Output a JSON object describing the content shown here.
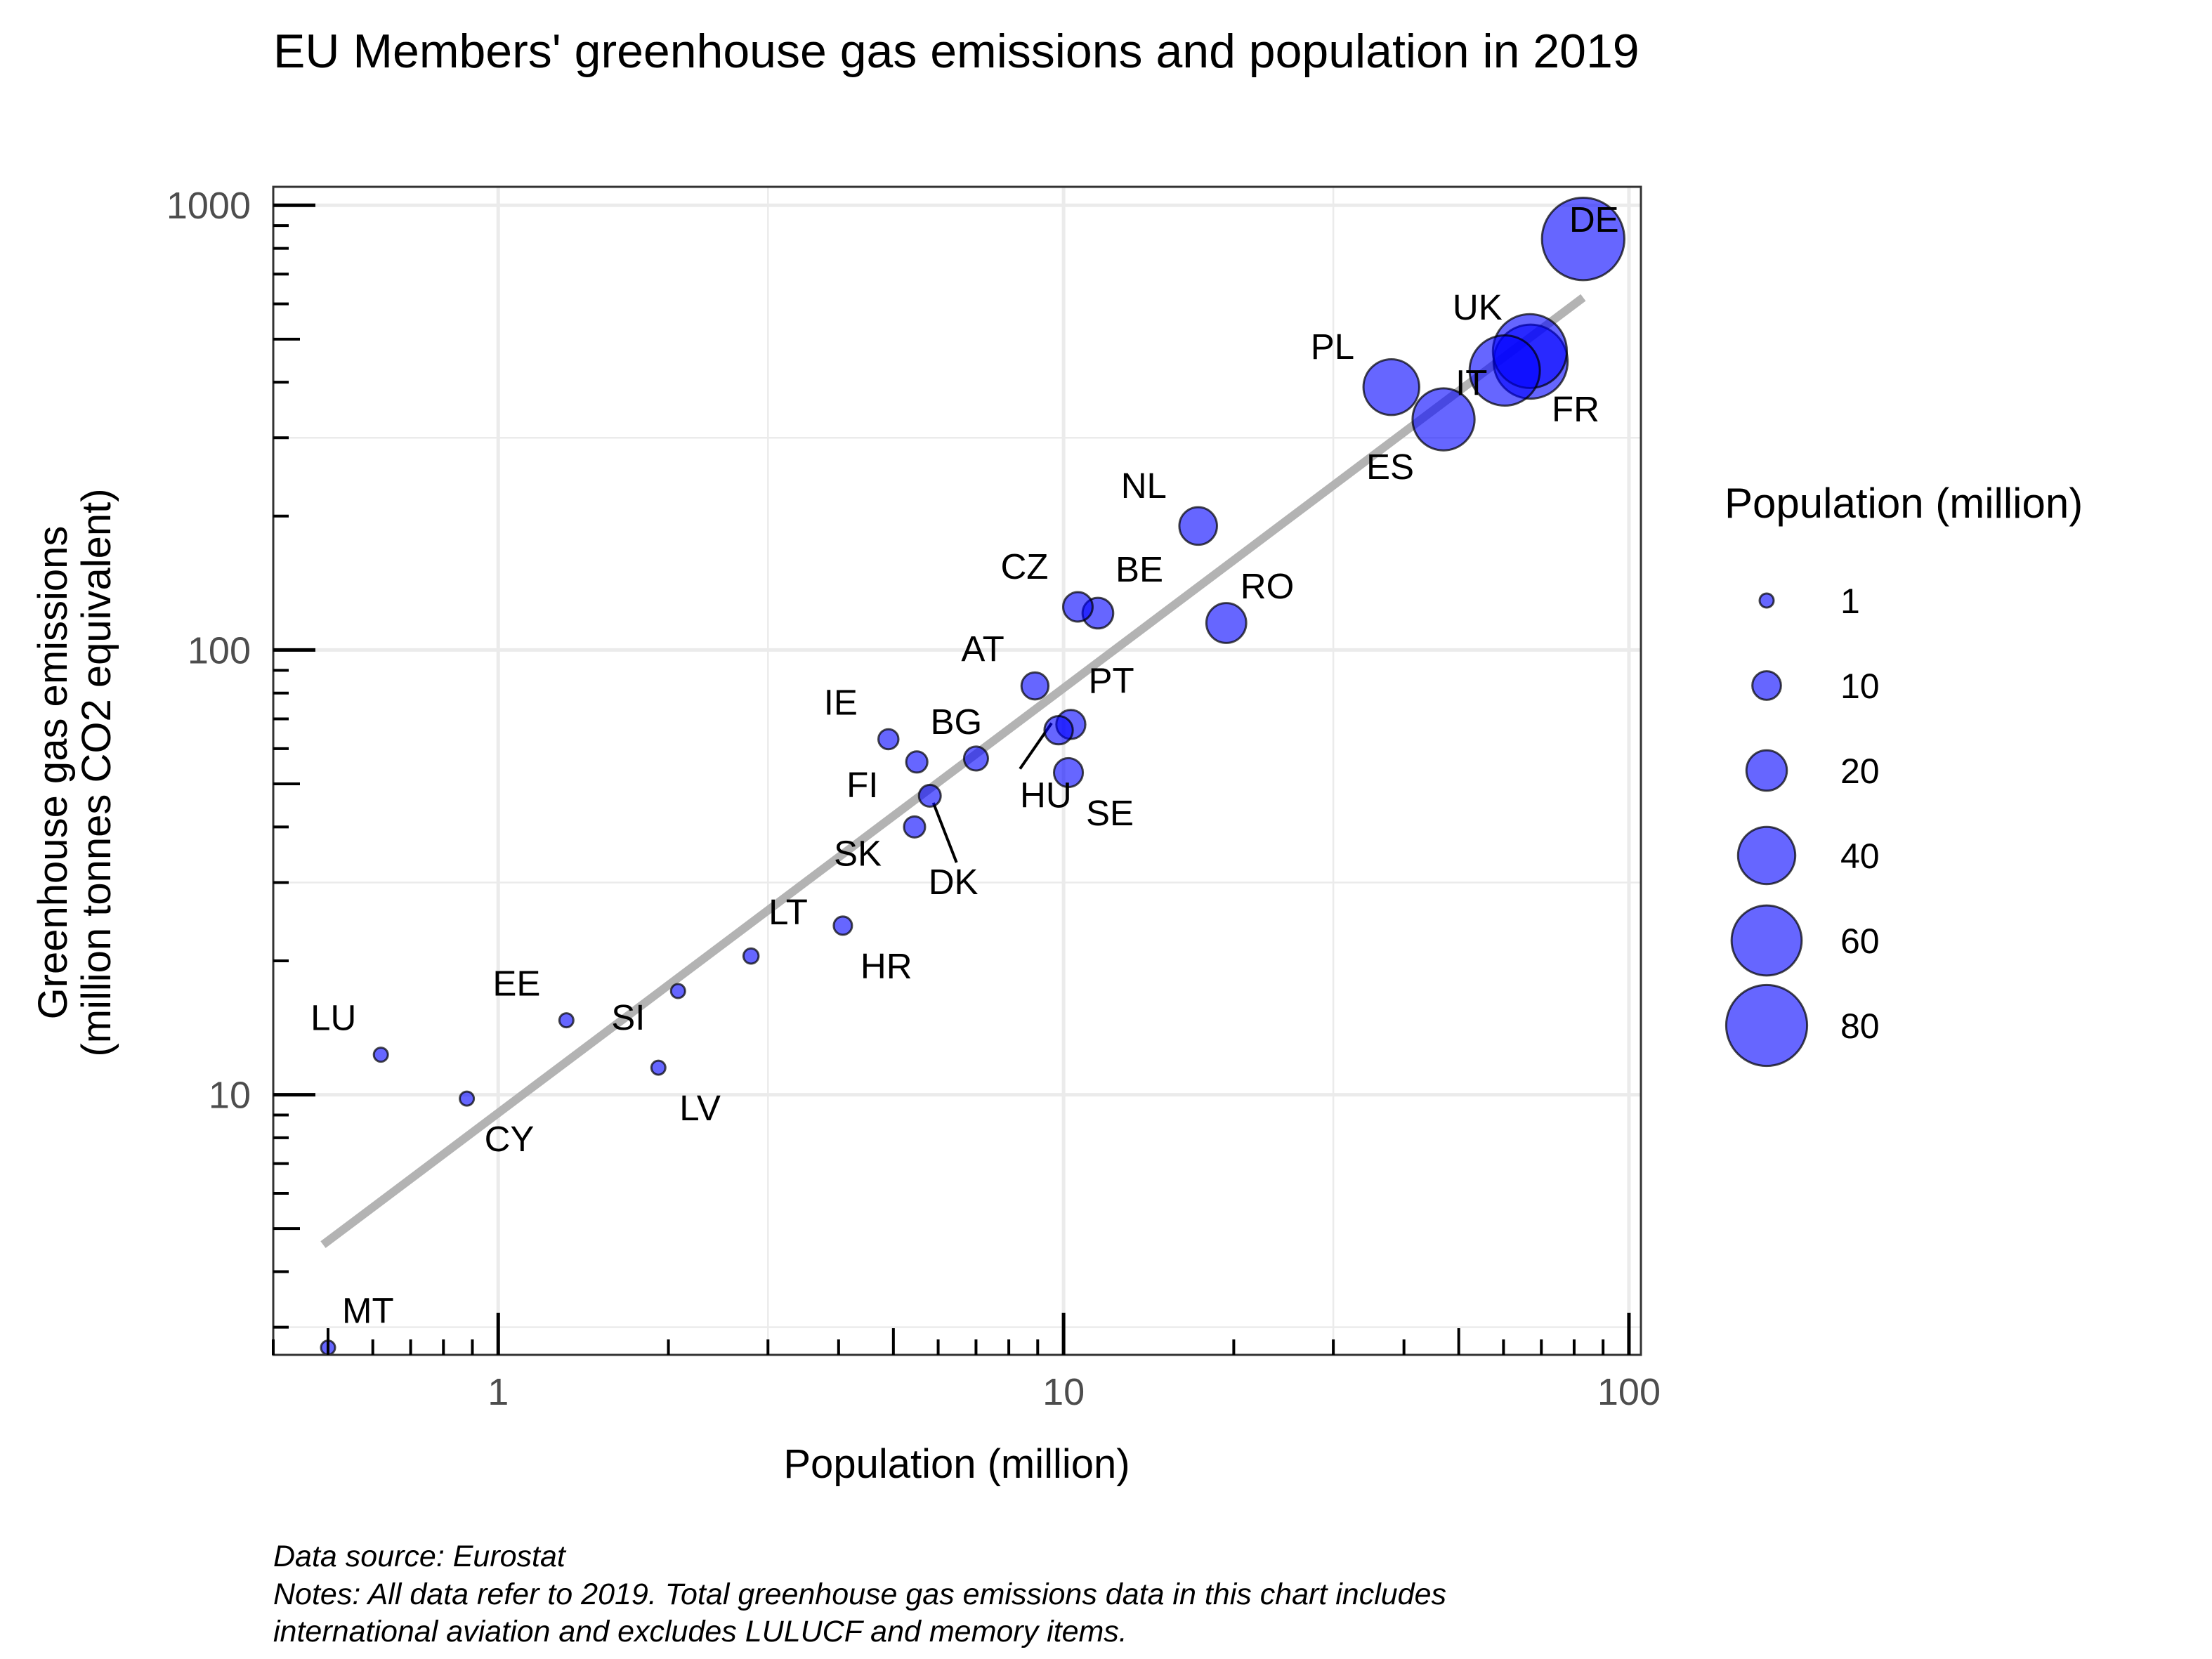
{
  "chart_data": {
    "type": "scatter",
    "title": "EU Members' greenhouse gas emissions and population in 2019",
    "xlabel": "Population (million)",
    "ylabel_lines": [
      "Greenhouse gas emissions",
      "(million tonnes CO2 equivalent)"
    ],
    "x_scale": "log10",
    "y_scale": "log10",
    "xlim": [
      0.4,
      105
    ],
    "ylim": [
      2.6,
      1100
    ],
    "x_ticks": [
      {
        "value": 1,
        "label": "1"
      },
      {
        "value": 10,
        "label": "10"
      },
      {
        "value": 100,
        "label": "100"
      }
    ],
    "y_ticks": [
      {
        "value": 10,
        "label": "10"
      },
      {
        "value": 100,
        "label": "100"
      },
      {
        "value": 1000,
        "label": "1000"
      }
    ],
    "grid": true,
    "point_color": "#0000ff",
    "point_opacity": 0.6,
    "point_stroke": "#000000",
    "trend_line": {
      "color": "#b3b3b3",
      "x": [
        0.49,
        83
      ],
      "y": [
        4.6,
        620
      ]
    },
    "points": [
      {
        "label": "DE",
        "x": 83.0,
        "y": 840
      },
      {
        "label": "UK",
        "x": 66.8,
        "y": 470
      },
      {
        "label": "FR",
        "x": 67.0,
        "y": 445
      },
      {
        "label": "IT",
        "x": 60.3,
        "y": 425
      },
      {
        "label": "PL",
        "x": 38.0,
        "y": 390
      },
      {
        "label": "ES",
        "x": 47.0,
        "y": 330
      },
      {
        "label": "NL",
        "x": 17.3,
        "y": 190
      },
      {
        "label": "RO",
        "x": 19.4,
        "y": 115
      },
      {
        "label": "CZ",
        "x": 10.6,
        "y": 125
      },
      {
        "label": "BE",
        "x": 11.5,
        "y": 121
      },
      {
        "label": "AT",
        "x": 8.9,
        "y": 83
      },
      {
        "label": "PT",
        "x": 10.3,
        "y": 68
      },
      {
        "label": "HU",
        "x": 9.8,
        "y": 66
      },
      {
        "label": "SE",
        "x": 10.2,
        "y": 53
      },
      {
        "label": "IE",
        "x": 4.9,
        "y": 63
      },
      {
        "label": "BG",
        "x": 7.0,
        "y": 57
      },
      {
        "label": "FI",
        "x": 5.5,
        "y": 56
      },
      {
        "label": "DK",
        "x": 5.8,
        "y": 47
      },
      {
        "label": "SK",
        "x": 5.45,
        "y": 40
      },
      {
        "label": "HR",
        "x": 4.07,
        "y": 24
      },
      {
        "label": "LT",
        "x": 2.8,
        "y": 20.5
      },
      {
        "label": "SI",
        "x": 2.08,
        "y": 17.1
      },
      {
        "label": "LV",
        "x": 1.92,
        "y": 11.5
      },
      {
        "label": "EE",
        "x": 1.32,
        "y": 14.7
      },
      {
        "label": "LU",
        "x": 0.62,
        "y": 12.3
      },
      {
        "label": "CY",
        "x": 0.88,
        "y": 9.8
      },
      {
        "label": "MT",
        "x": 0.5,
        "y": 2.7
      }
    ],
    "legend": {
      "title": "Population (million)",
      "placement": "right",
      "entries": [
        {
          "label": "1",
          "value": 1
        },
        {
          "label": "10",
          "value": 10
        },
        {
          "label": "20",
          "value": 20
        },
        {
          "label": "40",
          "value": 40
        },
        {
          "label": "60",
          "value": 60
        },
        {
          "label": "80",
          "value": 80
        }
      ]
    }
  },
  "caption": {
    "line1": "Data source: Eurostat",
    "line2": "Notes: All data refer to 2019. Total greenhouse gas emissions data in this chart includes",
    "line3": "international aviation and excludes LULUCF and memory items."
  }
}
